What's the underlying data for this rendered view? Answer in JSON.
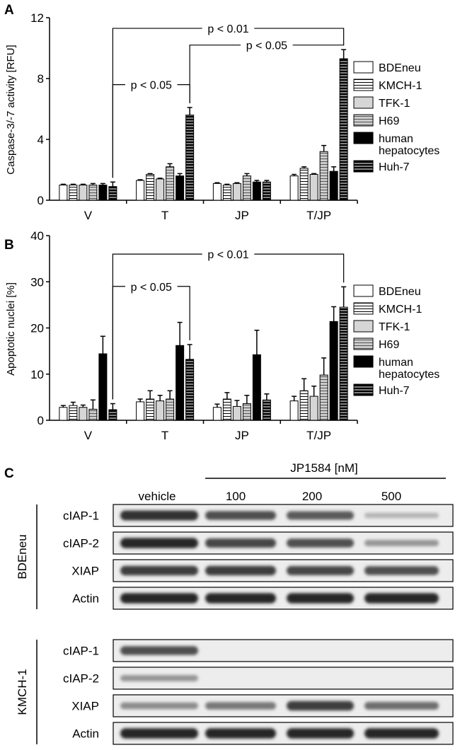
{
  "patterns": {
    "BDEneu": "solid-white",
    "KMCH-1": "horizontal-lines-white",
    "TFK-1": "solid-light-gray",
    "H69": "horizontal-lines-gray",
    "human hepatocytes": "solid-black",
    "Huh-7": "horizontal-lines-black"
  },
  "chart_data": [
    {
      "panel": "A",
      "type": "bar",
      "ylabel": "Caspase-3/-7 activity [RFU]",
      "ylim": [
        0,
        12
      ],
      "yticks": [
        "0",
        "4",
        "8",
        "12"
      ],
      "categories": [
        "V",
        "T",
        "JP",
        "T/JP"
      ],
      "legend_position": "right",
      "series": [
        {
          "name": "BDEneu",
          "values": [
            1.0,
            1.3,
            1.1,
            1.6
          ],
          "errors": [
            0.05,
            0.05,
            0.05,
            0.1
          ]
        },
        {
          "name": "KMCH-1",
          "values": [
            1.0,
            1.7,
            1.0,
            2.1
          ],
          "errors": [
            0.05,
            0.05,
            0.05,
            0.1
          ]
        },
        {
          "name": "TFK-1",
          "values": [
            1.0,
            1.4,
            1.1,
            1.7
          ],
          "errors": [
            0.05,
            0.05,
            0.05,
            0.05
          ]
        },
        {
          "name": "H69",
          "values": [
            1.0,
            2.2,
            1.6,
            3.2
          ],
          "errors": [
            0.1,
            0.2,
            0.15,
            0.4
          ]
        },
        {
          "name": "human hepatocytes",
          "values": [
            1.0,
            1.6,
            1.2,
            1.9
          ],
          "errors": [
            0.1,
            0.15,
            0.1,
            0.3
          ]
        },
        {
          "name": "Huh-7",
          "values": [
            0.9,
            5.6,
            1.2,
            9.3
          ],
          "errors": [
            0.3,
            0.5,
            0.1,
            0.6
          ]
        }
      ],
      "brackets": [
        {
          "label": "p < 0.05",
          "from": [
            0,
            5
          ],
          "to": [
            1,
            5
          ],
          "y": 7.6
        },
        {
          "label": "p < 0.01",
          "from": [
            0,
            5
          ],
          "to": [
            3,
            5
          ],
          "y": 11.3
        },
        {
          "label": "p < 0.05",
          "from": [
            1,
            5
          ],
          "to": [
            3,
            5
          ],
          "y": 10.2
        }
      ]
    },
    {
      "panel": "B",
      "type": "bar",
      "ylabel": "Apoptotic nuclei [%]",
      "ylim": [
        0,
        40
      ],
      "yticks": [
        "0",
        "10",
        "20",
        "30",
        "40"
      ],
      "categories": [
        "V",
        "T",
        "JP",
        "T/JP"
      ],
      "legend_position": "right",
      "series": [
        {
          "name": "BDEneu",
          "values": [
            2.8,
            4.0,
            2.8,
            4.2
          ],
          "errors": [
            0.4,
            0.6,
            0.7,
            1.0
          ]
        },
        {
          "name": "KMCH-1",
          "values": [
            3.2,
            4.6,
            4.6,
            6.4
          ],
          "errors": [
            0.7,
            1.8,
            1.4,
            2.6
          ]
        },
        {
          "name": "TFK-1",
          "values": [
            2.8,
            4.2,
            3.0,
            5.2
          ],
          "errors": [
            0.5,
            1.2,
            1.3,
            2.2
          ]
        },
        {
          "name": "H69",
          "values": [
            2.4,
            4.6,
            3.6,
            9.8
          ],
          "errors": [
            2.0,
            1.8,
            1.8,
            3.7
          ]
        },
        {
          "name": "human hepatocytes",
          "values": [
            14.4,
            16.2,
            14.2,
            21.4
          ],
          "errors": [
            3.8,
            5.0,
            5.3,
            3.2
          ]
        },
        {
          "name": "Huh-7",
          "values": [
            2.3,
            13.2,
            4.4,
            24.5
          ],
          "errors": [
            1.3,
            3.2,
            1.3,
            4.4
          ]
        }
      ],
      "brackets": [
        {
          "label": "p < 0.05",
          "from": [
            0,
            5
          ],
          "to": [
            1,
            5
          ],
          "y": 29
        },
        {
          "label": "p < 0.01",
          "from": [
            0,
            5
          ],
          "to": [
            3,
            5
          ],
          "y": 36
        }
      ]
    }
  ],
  "blot": {
    "panel": "C",
    "treatment_label": "JP1584 [nM]",
    "columns": [
      "vehicle",
      "100",
      "200",
      "500"
    ],
    "groups": [
      {
        "cell_line": "BDEneu",
        "rows": [
          {
            "protein": "cIAP-1",
            "intensity": [
              0.9,
              0.75,
              0.7,
              0.25
            ]
          },
          {
            "protein": "cIAP-2",
            "intensity": [
              0.95,
              0.8,
              0.75,
              0.4
            ]
          },
          {
            "protein": "XIAP",
            "intensity": [
              0.85,
              0.85,
              0.8,
              0.75
            ]
          },
          {
            "protein": "Actin",
            "intensity": [
              0.95,
              0.95,
              0.95,
              0.95
            ]
          }
        ]
      },
      {
        "cell_line": "KMCH-1",
        "rows": [
          {
            "protein": "cIAP-1",
            "intensity": [
              0.75,
              0.05,
              0.05,
              0.05
            ]
          },
          {
            "protein": "cIAP-2",
            "intensity": [
              0.4,
              0.03,
              0.03,
              0.03
            ]
          },
          {
            "protein": "XIAP",
            "intensity": [
              0.45,
              0.55,
              0.85,
              0.6
            ]
          },
          {
            "protein": "Actin",
            "intensity": [
              0.95,
              0.95,
              0.95,
              0.95
            ]
          }
        ]
      }
    ]
  }
}
